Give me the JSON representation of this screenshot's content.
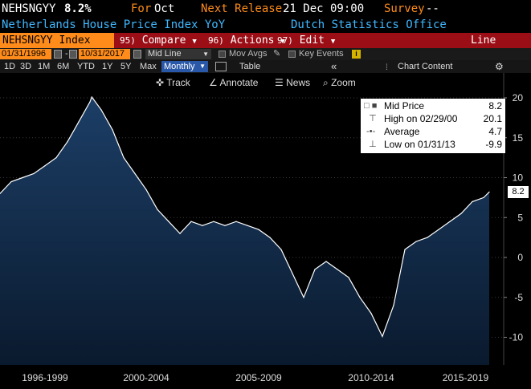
{
  "header": {
    "ticker": "NEHSNGYY",
    "value": "8.2%",
    "for_label": "For",
    "for_value": "Oct",
    "next_release_label": "Next Release",
    "next_release_value": "21 Dec 09:00",
    "survey_label": "Survey",
    "survey_value": "--",
    "description": "Netherlands House Price Index YoY",
    "source": "Dutch Statistics Office"
  },
  "menu": {
    "ticker_box": "NEHSNGYY Index",
    "compare_num": "95)",
    "compare": "Compare",
    "actions_num": "96)",
    "actions": "Actions",
    "edit_num": "97)",
    "edit": "Edit",
    "chart_type": "Line Chart"
  },
  "range": {
    "start": "01/31/1996",
    "end": "10/31/2017",
    "dash": "-",
    "mode": "Mid Line",
    "mov_avgs": "Mov Avgs",
    "key_events": "Key Events"
  },
  "periods": [
    "1D",
    "3D",
    "1M",
    "6M",
    "YTD",
    "1Y",
    "5Y",
    "Max"
  ],
  "frequency": "Monthly",
  "table_label": "Table",
  "chart_content_label": "Chart Content",
  "tools": {
    "track": "Track",
    "annotate": "Annotate",
    "news": "News",
    "zoom": "Zoom"
  },
  "legend": {
    "mid_label": "Mid Price",
    "mid_value": "8.2",
    "high_label": "High on 02/29/00",
    "high_value": "20.1",
    "avg_label": "Average",
    "avg_value": "4.7",
    "low_label": "Low on 01/31/13",
    "low_value": "-9.9"
  },
  "last_value": "8.2",
  "colors": {
    "orange": "#ff8c1a",
    "cyan": "#3fb8ff",
    "menu_red": "#9b0e16",
    "area_top": "#1c3e66",
    "area_bottom": "#0a1a2e"
  },
  "chart_data": {
    "type": "area",
    "ylim": [
      -12,
      22
    ],
    "yticks": [
      -10,
      -5,
      0,
      5,
      10,
      15,
      20
    ],
    "xlabels": [
      "1996-1999",
      "2000-2004",
      "2005-2009",
      "2010-2014",
      "2015-2019"
    ],
    "x": [
      "1996-01",
      "1996-07",
      "1997-01",
      "1997-07",
      "1998-01",
      "1998-07",
      "1999-01",
      "1999-07",
      "2000-01",
      "2000-02",
      "2000-07",
      "2001-01",
      "2001-07",
      "2002-01",
      "2002-07",
      "2003-01",
      "2003-07",
      "2004-01",
      "2004-07",
      "2005-01",
      "2005-07",
      "2006-01",
      "2006-07",
      "2007-01",
      "2007-07",
      "2008-01",
      "2008-07",
      "2009-01",
      "2009-07",
      "2010-01",
      "2010-07",
      "2011-01",
      "2011-07",
      "2012-01",
      "2012-07",
      "2013-01",
      "2013-07",
      "2014-01",
      "2014-07",
      "2015-01",
      "2015-07",
      "2016-01",
      "2016-07",
      "2017-01",
      "2017-07",
      "2017-10"
    ],
    "values": [
      8.0,
      9.5,
      10.0,
      10.5,
      11.5,
      12.5,
      14.5,
      17.0,
      19.5,
      20.1,
      18.5,
      16.0,
      12.5,
      10.5,
      8.5,
      6.0,
      4.5,
      3.0,
      4.5,
      4.0,
      4.5,
      4.0,
      4.5,
      4.0,
      3.5,
      2.5,
      1.0,
      -2.0,
      -5.0,
      -1.5,
      -0.5,
      -1.5,
      -2.5,
      -5.0,
      -7.0,
      -9.9,
      -6.0,
      1.0,
      2.0,
      2.5,
      3.5,
      4.5,
      5.5,
      7.0,
      7.5,
      8.2
    ],
    "last_value": 8.2
  }
}
